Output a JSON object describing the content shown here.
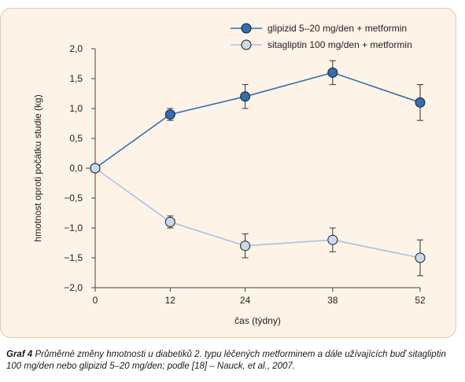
{
  "chart_data": {
    "type": "line",
    "x": [
      0,
      12,
      24,
      38,
      52
    ],
    "x_tick_labels": [
      "0",
      "12",
      "24",
      "38",
      "52"
    ],
    "xlabel": "čas (týdny)",
    "ylabel": "hmotnost oproti počátku studie (kg)",
    "ylim": [
      -2.0,
      2.0
    ],
    "y_ticks": [
      2.0,
      1.5,
      1.0,
      0.5,
      0.0,
      -0.5,
      -1.0,
      -1.5,
      -2.0
    ],
    "y_tick_labels": [
      "2,0",
      "1,5",
      "1,0",
      "0,5",
      "0,0",
      "−0,5",
      "−1,0",
      "−1,5",
      "−2,0"
    ],
    "grid": false,
    "legend_position": "top-right",
    "series": [
      {
        "name": "glipizid 5–20 mg/den + metformin",
        "color": "#2f6fb5",
        "marker_fill": "#2f6fb5",
        "values": [
          0.0,
          0.9,
          1.2,
          1.6,
          1.1
        ],
        "error_low": [
          null,
          0.8,
          1.0,
          1.4,
          0.8
        ],
        "error_high": [
          null,
          1.0,
          1.4,
          1.8,
          1.4
        ]
      },
      {
        "name": "sitagliptin 100 mg/den + metformin",
        "color": "#a9c3e0",
        "marker_fill": "#c9daf0",
        "values": [
          0.0,
          -0.9,
          -1.3,
          -1.2,
          -1.5
        ],
        "error_low": [
          null,
          -1.0,
          -1.5,
          -1.4,
          -1.8
        ],
        "error_high": [
          null,
          -0.8,
          -1.1,
          -1.0,
          -1.2
        ]
      }
    ]
  },
  "caption": {
    "label": "Graf 4",
    "text": "Průměrné změny hmotnosti u diabetiků 2. typu léčených metforminem a dále užívajících buď sitagliptin 100 mg/den nebo glipizid 5–20 mg/den; podle [18] – Nauck, et al., 2007."
  }
}
